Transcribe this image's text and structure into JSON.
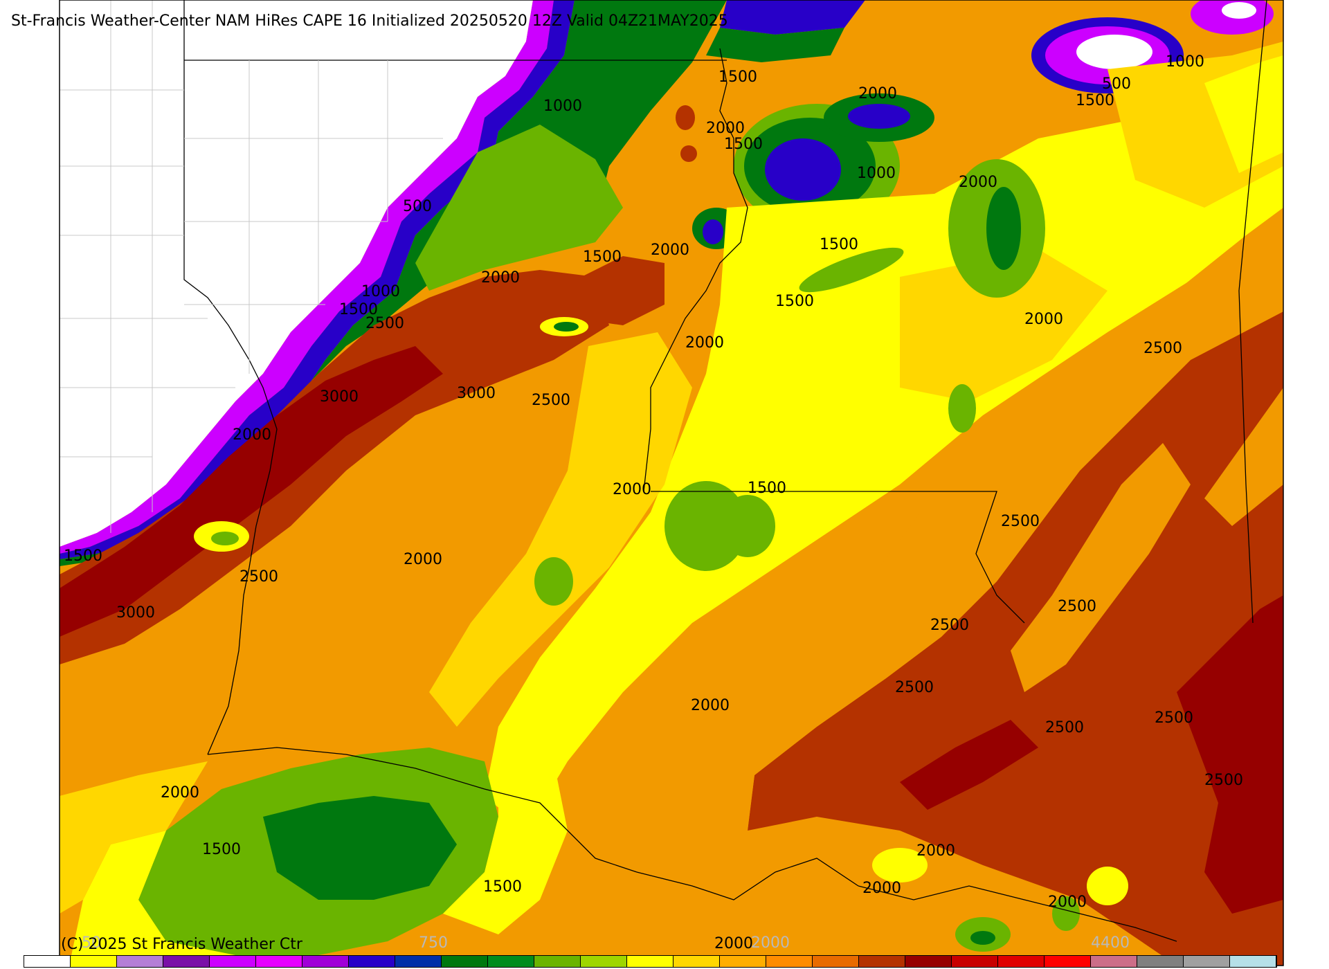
{
  "title": "St-Francis Weather-Center NAM HiRes CAPE  16 Initialized 20250520 12Z Valid 04Z21MAY2025",
  "copyright": "(C) 2025 St Francis Weather Ctr",
  "colorbar": {
    "visible_labels": [
      "50",
      "750",
      "2000",
      "4400"
    ],
    "colors": [
      "#ffffff",
      "#ffff00",
      "#b47ed6",
      "#7a10a8",
      "#cc00ff",
      "#e600ff",
      "#a000d8",
      "#2800c8",
      "#002fa8",
      "#00780f",
      "#008c1e",
      "#6ab400",
      "#9ed600",
      "#ffff00",
      "#ffd700",
      "#ffae00",
      "#ff8c00",
      "#e86b00",
      "#b43200",
      "#960000",
      "#c80000",
      "#e00000",
      "#ff0000",
      "#cc6e88",
      "#808080",
      "#a0a0a0",
      "#b5e0e8"
    ]
  },
  "contour_labels": {
    "l500a": "500",
    "l500b": "500",
    "l1000a": "1000",
    "l1000b": "1000",
    "l1000c": "1000",
    "l1000d": "1000",
    "l1500a": "1500",
    "l1500b": "1500",
    "l1500c": "1500",
    "l1500d": "1500",
    "l1500e": "1500",
    "l1500f": "1500",
    "l1500g": "1500",
    "l1500h": "1500",
    "l1500i": "1500",
    "l1500j": "1500",
    "l1500k": "1500",
    "l2000a": "2000",
    "l2000b": "2000",
    "l2000c": "2000",
    "l2000d": "2000",
    "l2000e": "2000",
    "l2000f": "2000",
    "l2000g": "2000",
    "l2000h": "2000",
    "l2000i": "2000",
    "l2000j": "2000",
    "l2000k": "2000",
    "l2000l": "2000",
    "l2000m": "2000",
    "l2000n": "2000",
    "l2000o": "2000",
    "l2000p": "2000",
    "l2500a": "2500",
    "l2500b": "2500",
    "l2500c": "2500",
    "l2500d": "2500",
    "l2500e": "2500",
    "l2500f": "2500",
    "l2500g": "2500",
    "l2500h": "2500",
    "l2500i": "2500",
    "l2500j": "2500",
    "l2500k": "2500",
    "l3000a": "3000",
    "l3000b": "3000",
    "l3000c": "3000"
  }
}
